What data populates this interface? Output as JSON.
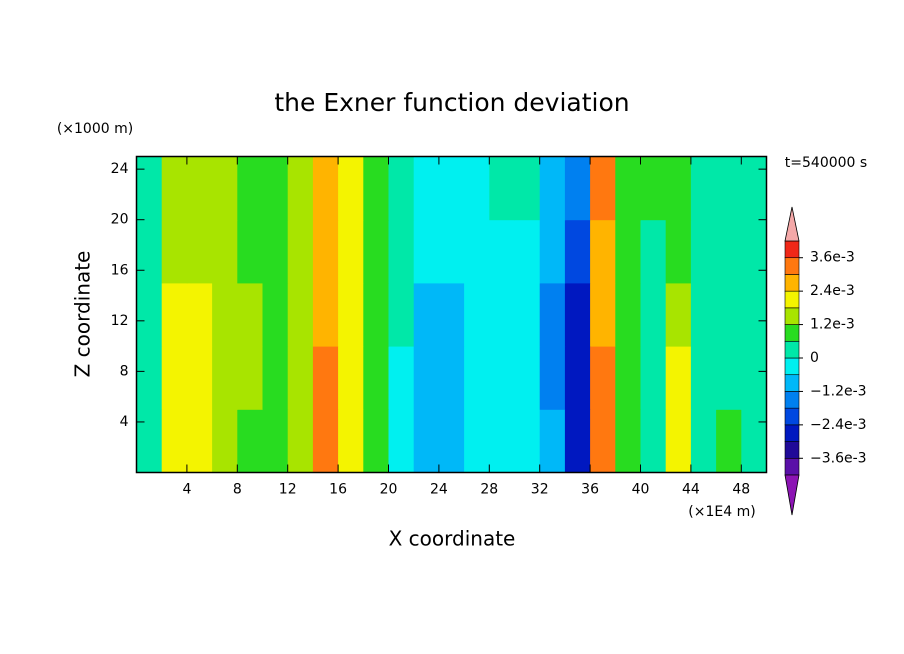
{
  "chart_data": {
    "type": "contour",
    "title": "the Exner function deviation",
    "x_label": "X coordinate",
    "y_label": "Z coordinate",
    "x_unit": "(×1E4 m)",
    "y_unit": "(×1000 m)",
    "annotation": "t=540000 s",
    "x": [
      1,
      3,
      5,
      7,
      9,
      11,
      13,
      15,
      17,
      19,
      21,
      23,
      25,
      27,
      29,
      31,
      33,
      35,
      37,
      39,
      41,
      43,
      45,
      47,
      49
    ],
    "y": [
      2.5,
      7.5,
      12.5,
      17.5,
      22.5
    ],
    "values": [
      [
        0.0005,
        0.0019,
        0.002,
        0.0016,
        0.001,
        0.0007,
        0.0012,
        0.003,
        0.002,
        0.0006,
        -0.0004,
        -0.0007,
        -0.0008,
        -0.0004,
        -0.0002,
        -0.0001,
        -0.001,
        -0.0028,
        0.0032,
        0.001,
        0.0003,
        0.0018,
        0.0002,
        0.0006,
        0.0003
      ],
      [
        0.0005,
        0.002,
        0.0021,
        0.0017,
        0.0012,
        0.0008,
        0.0013,
        0.0032,
        0.0019,
        0.0006,
        -0.0002,
        -0.0008,
        -0.001,
        -0.0005,
        -0.0003,
        -0.0002,
        -0.0013,
        -0.0027,
        0.003,
        0.0009,
        0.0003,
        0.002,
        0.0003,
        0.0005,
        0.0003
      ],
      [
        0.0005,
        0.0019,
        0.0019,
        0.0015,
        0.0013,
        0.0008,
        0.0013,
        0.0026,
        0.0019,
        0.0006,
        0.0002,
        -0.0008,
        -0.0011,
        -0.0005,
        -0.0003,
        -0.0002,
        -0.0013,
        -0.0025,
        0.0028,
        0.0008,
        0.0004,
        0.0016,
        0.0003,
        0.0005,
        0.0003
      ],
      [
        0.0005,
        0.0015,
        0.0014,
        0.0013,
        0.0011,
        0.0008,
        0.0013,
        0.0025,
        0.0019,
        0.0006,
        0.0003,
        -0.0004,
        -0.0006,
        -0.0003,
        -0.0002,
        -0.0001,
        -0.001,
        -0.002,
        0.0028,
        0.0007,
        0.0005,
        0.0011,
        0.0003,
        0.0004,
        0.0003
      ],
      [
        0.0005,
        0.0014,
        0.0013,
        0.0012,
        0.0009,
        0.0008,
        0.0014,
        0.0025,
        0.0019,
        0.0006,
        0.0003,
        -0.0002,
        -0.0003,
        -0.0002,
        0.0001,
        0.0002,
        -0.0008,
        -0.0015,
        0.003,
        0.0006,
        0.0006,
        0.001,
        0.0003,
        0.0004,
        0.0003
      ]
    ],
    "xlim": [
      0,
      50
    ],
    "xticks": [
      4,
      8,
      12,
      16,
      20,
      24,
      28,
      32,
      36,
      40,
      44,
      48
    ],
    "ylim": [
      0,
      25
    ],
    "yticks": [
      4,
      8,
      12,
      16,
      20,
      24
    ],
    "colorbar": {
      "levels": [
        -0.0042,
        -0.0036,
        -0.003,
        -0.0024,
        -0.0018,
        -0.0012,
        -0.0006,
        0,
        0.0006,
        0.0012,
        0.0018,
        0.0024,
        0.003,
        0.0036,
        0.0042
      ],
      "colors": [
        "#5a10a8",
        "#200a98",
        "#0018c0",
        "#0048e0",
        "#0080f0",
        "#00b8f8",
        "#00f0f0",
        "#00e8a8",
        "#28dc20",
        "#a8e400",
        "#f4f400",
        "#ffb400",
        "#ff7810",
        "#f02818"
      ],
      "under_color": "#8c14b4",
      "over_color": "#f4a8a8",
      "ticks": [
        {
          "value": -0.0036,
          "label": "−3.6e-3"
        },
        {
          "value": -0.0024,
          "label": "−2.4e-3"
        },
        {
          "value": -0.0012,
          "label": "−1.2e-3"
        },
        0,
        {
          "value": 0.0012,
          "label": "1.2e-3"
        },
        {
          "value": 0.0024,
          "label": "2.4e-3"
        },
        {
          "value": 0.0036,
          "label": "3.6e-3"
        }
      ]
    }
  }
}
